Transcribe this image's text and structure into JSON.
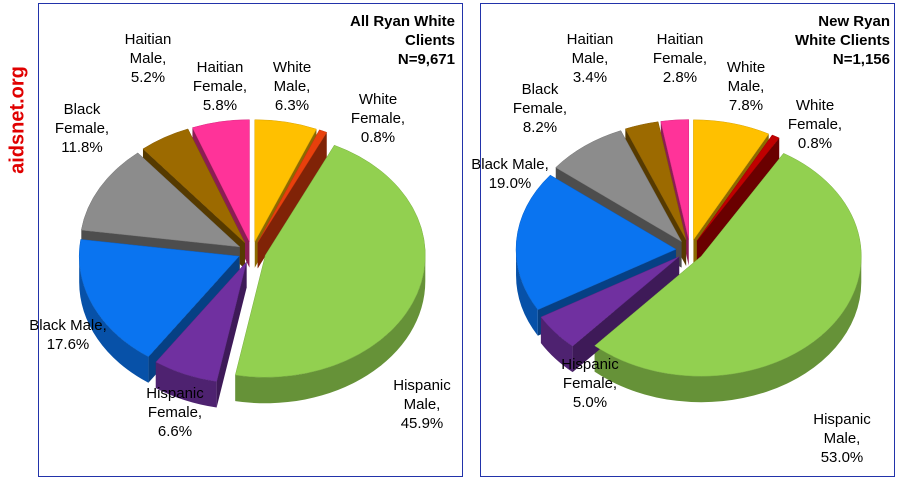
{
  "side_label": "aidsnet.org",
  "chart_data": [
    {
      "type": "pie3d",
      "title": "All Ryan White Clients",
      "subtitle": "N=9,671",
      "categories": [
        "White Male,",
        "White Female,",
        "Hispanic Male,",
        "Hispanic Female,",
        "Black Male,",
        "Black Female,",
        "Haitian Male,",
        "Haitian Female,"
      ],
      "values": [
        6.3,
        0.8,
        45.9,
        6.6,
        17.6,
        11.8,
        5.2,
        5.8
      ],
      "value_labels": [
        "6.3%",
        "0.8%",
        "45.9%",
        "6.6%",
        "17.6%",
        "11.8%",
        "5.2%",
        "5.8%"
      ],
      "colors": [
        "#ffc000",
        "#e8400c",
        "#92d050",
        "#7030a0",
        "#0a74f0",
        "#8c8c8c",
        "#9c6a00",
        "#ff3399"
      ]
    },
    {
      "type": "pie3d",
      "title": "New Ryan White Clients",
      "subtitle": "N=1,156",
      "categories": [
        "White Male,",
        "White Female,",
        "Hispanic Male,",
        "Hispanic Female,",
        "Black Male,",
        "Black Female,",
        "Haitian Male,",
        "Haitian Female,"
      ],
      "values": [
        7.8,
        0.8,
        53.0,
        5.0,
        19.0,
        8.2,
        3.4,
        2.8
      ],
      "value_labels": [
        "7.8%",
        "0.8%",
        "53.0%",
        "5.0%",
        "19.0%",
        "8.2%",
        "3.4%",
        "2.8%"
      ],
      "colors": [
        "#ffc000",
        "#c00000",
        "#92d050",
        "#7030a0",
        "#0a74f0",
        "#8c8c8c",
        "#9c6a00",
        "#ff3399"
      ]
    }
  ]
}
